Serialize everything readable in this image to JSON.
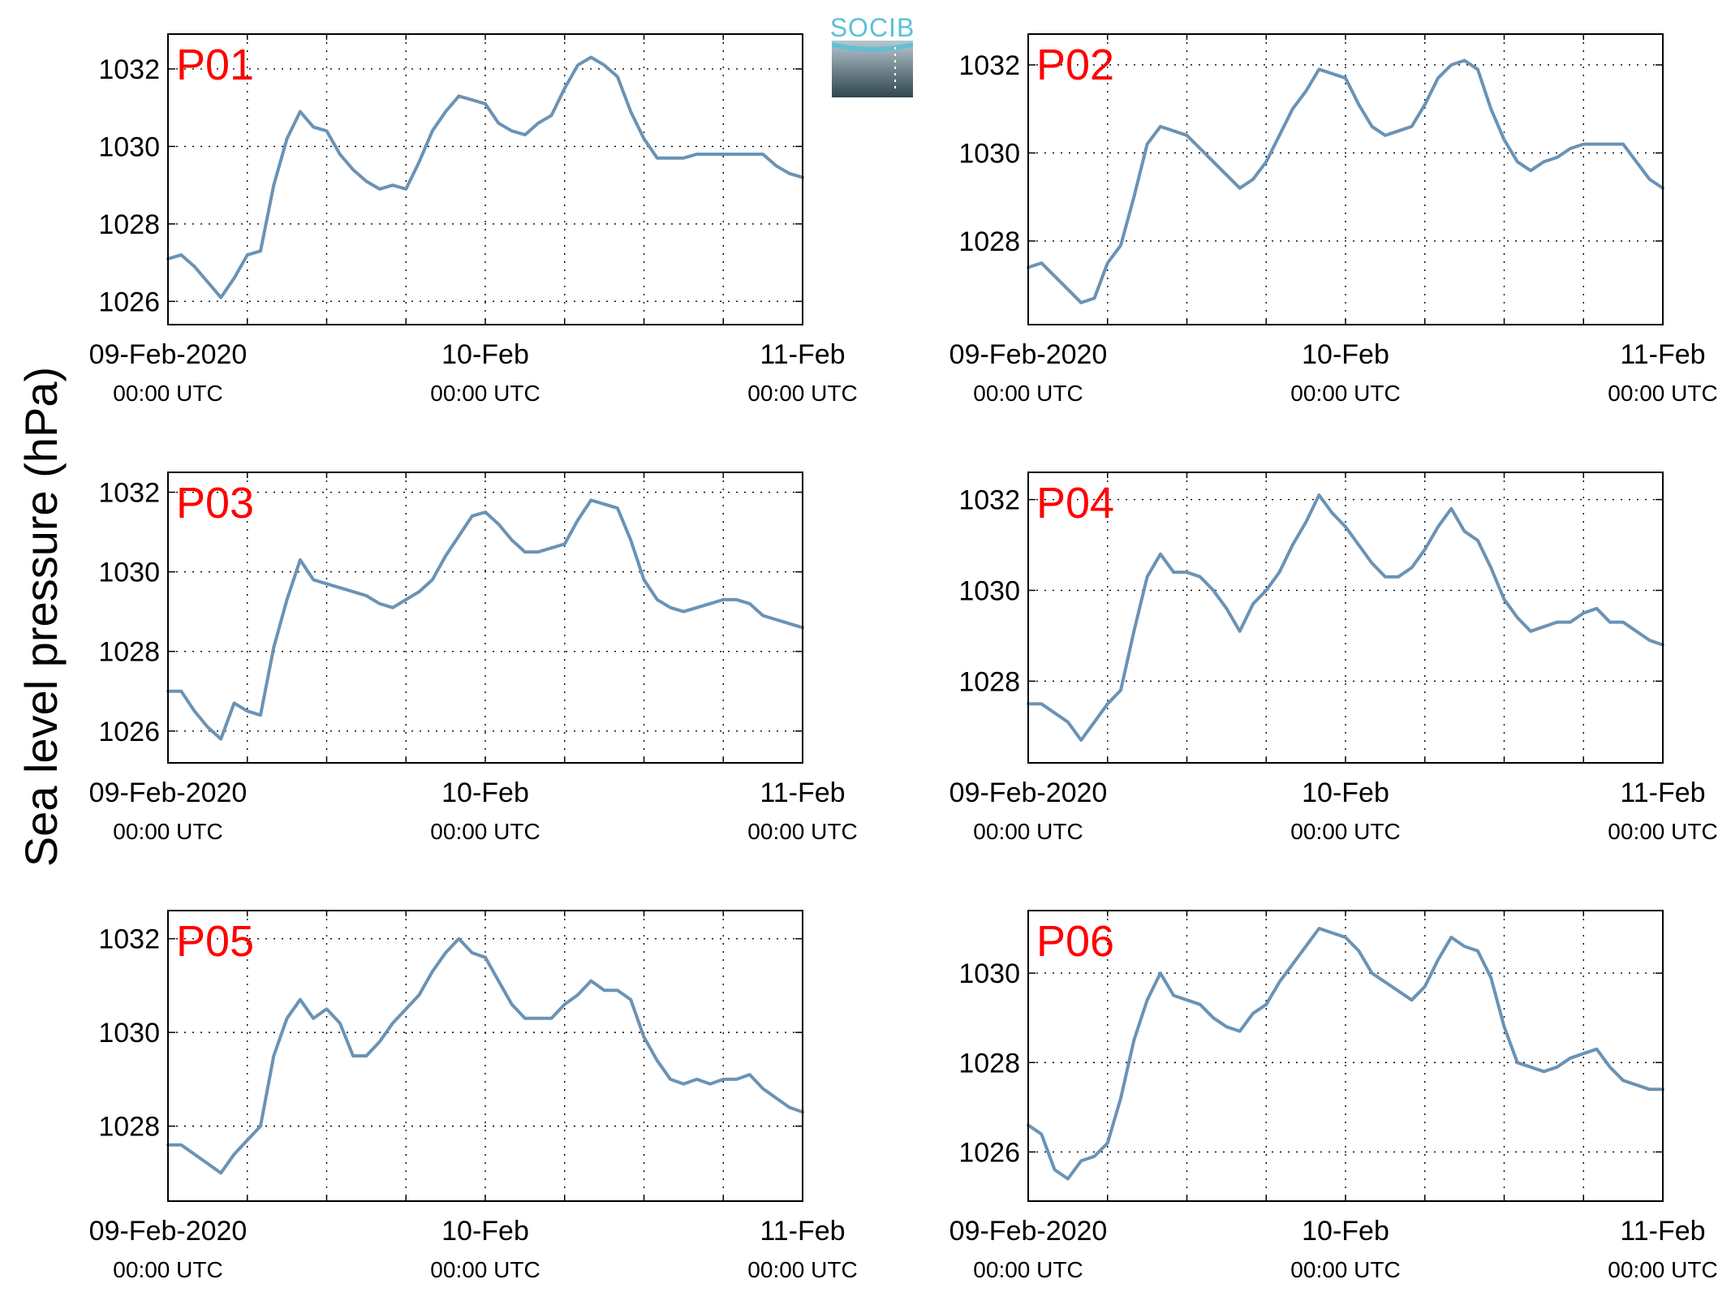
{
  "figure": {
    "ylabel": "Sea level pressure (hPa)",
    "logo_text": "SOCIB"
  },
  "colors": {
    "line": "#6a93b5",
    "panel_label": "#ff0000",
    "axes": "#000000",
    "grid": "#000000",
    "logo_top": "#5bc0d6",
    "logo_bottom": "#2f4550"
  },
  "chart_data": [
    {
      "type": "line",
      "title": "P01",
      "x_tick_labels": [
        {
          "date": "09-Feb-2020",
          "time": "00:00 UTC"
        },
        {
          "date": "10-Feb",
          "time": "00:00 UTC"
        },
        {
          "date": "11-Feb",
          "time": "00:00 UTC"
        }
      ],
      "xlim": [
        0,
        48
      ],
      "ylim": [
        1025.4,
        1032.9
      ],
      "yticks": [
        1026,
        1028,
        1030,
        1032
      ],
      "grid": true,
      "x": [
        0,
        1,
        2,
        3,
        4,
        5,
        6,
        7,
        8,
        9,
        10,
        11,
        12,
        13,
        14,
        15,
        16,
        17,
        18,
        19,
        20,
        21,
        22,
        23,
        24,
        25,
        26,
        27,
        28,
        29,
        30,
        31,
        32,
        33,
        34,
        35,
        36,
        37,
        38,
        39,
        40,
        41,
        42,
        43,
        44,
        45,
        46,
        47,
        48
      ],
      "y": [
        1027.1,
        1027.2,
        1026.9,
        1026.5,
        1026.1,
        1026.6,
        1027.2,
        1027.3,
        1029.0,
        1030.2,
        1030.9,
        1030.5,
        1030.4,
        1029.8,
        1029.4,
        1029.1,
        1028.9,
        1029.0,
        1028.9,
        1029.6,
        1030.4,
        1030.9,
        1031.3,
        1031.2,
        1031.1,
        1030.6,
        1030.4,
        1030.3,
        1030.6,
        1030.8,
        1031.5,
        1032.1,
        1032.3,
        1032.1,
        1031.8,
        1030.9,
        1030.2,
        1029.7,
        1029.7,
        1029.7,
        1029.8,
        1029.8,
        1029.8,
        1029.8,
        1029.8,
        1029.8,
        1029.5,
        1029.3,
        1029.2
      ]
    },
    {
      "type": "line",
      "title": "P02",
      "x_tick_labels": [
        {
          "date": "09-Feb-2020",
          "time": "00:00 UTC"
        },
        {
          "date": "10-Feb",
          "time": "00:00 UTC"
        },
        {
          "date": "11-Feb",
          "time": "00:00 UTC"
        }
      ],
      "xlim": [
        0,
        48
      ],
      "ylim": [
        1026.1,
        1032.7
      ],
      "yticks": [
        1028,
        1030,
        1032
      ],
      "grid": true,
      "x": [
        0,
        1,
        2,
        3,
        4,
        5,
        6,
        7,
        8,
        9,
        10,
        11,
        12,
        13,
        14,
        15,
        16,
        17,
        18,
        19,
        20,
        21,
        22,
        23,
        24,
        25,
        26,
        27,
        28,
        29,
        30,
        31,
        32,
        33,
        34,
        35,
        36,
        37,
        38,
        39,
        40,
        41,
        42,
        43,
        44,
        45,
        46,
        47,
        48
      ],
      "y": [
        1027.4,
        1027.5,
        1027.2,
        1026.9,
        1026.6,
        1026.7,
        1027.5,
        1027.9,
        1029.0,
        1030.2,
        1030.6,
        1030.5,
        1030.4,
        1030.1,
        1029.8,
        1029.5,
        1029.2,
        1029.4,
        1029.8,
        1030.4,
        1031.0,
        1031.4,
        1031.9,
        1031.8,
        1031.7,
        1031.1,
        1030.6,
        1030.4,
        1030.5,
        1030.6,
        1031.1,
        1031.7,
        1032.0,
        1032.1,
        1031.9,
        1031.0,
        1030.3,
        1029.8,
        1029.6,
        1029.8,
        1029.9,
        1030.1,
        1030.2,
        1030.2,
        1030.2,
        1030.2,
        1029.8,
        1029.4,
        1029.2
      ]
    },
    {
      "type": "line",
      "title": "P03",
      "x_tick_labels": [
        {
          "date": "09-Feb-2020",
          "time": "00:00 UTC"
        },
        {
          "date": "10-Feb",
          "time": "00:00 UTC"
        },
        {
          "date": "11-Feb",
          "time": "00:00 UTC"
        }
      ],
      "xlim": [
        0,
        48
      ],
      "ylim": [
        1025.2,
        1032.5
      ],
      "yticks": [
        1026,
        1028,
        1030,
        1032
      ],
      "grid": true,
      "x": [
        0,
        1,
        2,
        3,
        4,
        5,
        6,
        7,
        8,
        9,
        10,
        11,
        12,
        13,
        14,
        15,
        16,
        17,
        18,
        19,
        20,
        21,
        22,
        23,
        24,
        25,
        26,
        27,
        28,
        29,
        30,
        31,
        32,
        33,
        34,
        35,
        36,
        37,
        38,
        39,
        40,
        41,
        42,
        43,
        44,
        45,
        46,
        47,
        48
      ],
      "y": [
        1027.0,
        1027.0,
        1026.5,
        1026.1,
        1025.8,
        1026.7,
        1026.5,
        1026.4,
        1028.1,
        1029.3,
        1030.3,
        1029.8,
        1029.7,
        1029.6,
        1029.5,
        1029.4,
        1029.2,
        1029.1,
        1029.3,
        1029.5,
        1029.8,
        1030.4,
        1030.9,
        1031.4,
        1031.5,
        1031.2,
        1030.8,
        1030.5,
        1030.5,
        1030.6,
        1030.7,
        1031.3,
        1031.8,
        1031.7,
        1031.6,
        1030.8,
        1029.8,
        1029.3,
        1029.1,
        1029.0,
        1029.1,
        1029.2,
        1029.3,
        1029.3,
        1029.2,
        1028.9,
        1028.8,
        1028.7,
        1028.6
      ]
    },
    {
      "type": "line",
      "title": "P04",
      "x_tick_labels": [
        {
          "date": "09-Feb-2020",
          "time": "00:00 UTC"
        },
        {
          "date": "10-Feb",
          "time": "00:00 UTC"
        },
        {
          "date": "11-Feb",
          "time": "00:00 UTC"
        }
      ],
      "xlim": [
        0,
        48
      ],
      "ylim": [
        1026.2,
        1032.6
      ],
      "yticks": [
        1028,
        1030,
        1032
      ],
      "grid": true,
      "x": [
        0,
        1,
        2,
        3,
        4,
        5,
        6,
        7,
        8,
        9,
        10,
        11,
        12,
        13,
        14,
        15,
        16,
        17,
        18,
        19,
        20,
        21,
        22,
        23,
        24,
        25,
        26,
        27,
        28,
        29,
        30,
        31,
        32,
        33,
        34,
        35,
        36,
        37,
        38,
        39,
        40,
        41,
        42,
        43,
        44,
        45,
        46,
        47,
        48
      ],
      "y": [
        1027.5,
        1027.5,
        1027.3,
        1027.1,
        1026.7,
        1027.1,
        1027.5,
        1027.8,
        1029.1,
        1030.3,
        1030.8,
        1030.4,
        1030.4,
        1030.3,
        1030.0,
        1029.6,
        1029.1,
        1029.7,
        1030.0,
        1030.4,
        1031.0,
        1031.5,
        1032.1,
        1031.7,
        1031.4,
        1031.0,
        1030.6,
        1030.3,
        1030.3,
        1030.5,
        1030.9,
        1031.4,
        1031.8,
        1031.3,
        1031.1,
        1030.5,
        1029.8,
        1029.4,
        1029.1,
        1029.2,
        1029.3,
        1029.3,
        1029.5,
        1029.6,
        1029.3,
        1029.3,
        1029.1,
        1028.9,
        1028.8
      ]
    },
    {
      "type": "line",
      "title": "P05",
      "x_tick_labels": [
        {
          "date": "09-Feb-2020",
          "time": "00:00 UTC"
        },
        {
          "date": "10-Feb",
          "time": "00:00 UTC"
        },
        {
          "date": "11-Feb",
          "time": "00:00 UTC"
        }
      ],
      "xlim": [
        0,
        48
      ],
      "ylim": [
        1026.4,
        1032.6
      ],
      "yticks": [
        1028,
        1030,
        1032
      ],
      "grid": true,
      "x": [
        0,
        1,
        2,
        3,
        4,
        5,
        6,
        7,
        8,
        9,
        10,
        11,
        12,
        13,
        14,
        15,
        16,
        17,
        18,
        19,
        20,
        21,
        22,
        23,
        24,
        25,
        26,
        27,
        28,
        29,
        30,
        31,
        32,
        33,
        34,
        35,
        36,
        37,
        38,
        39,
        40,
        41,
        42,
        43,
        44,
        45,
        46,
        47,
        48
      ],
      "y": [
        1027.6,
        1027.6,
        1027.4,
        1027.2,
        1027.0,
        1027.4,
        1027.7,
        1028.0,
        1029.5,
        1030.3,
        1030.7,
        1030.3,
        1030.5,
        1030.2,
        1029.5,
        1029.5,
        1029.8,
        1030.2,
        1030.5,
        1030.8,
        1031.3,
        1031.7,
        1032.0,
        1031.7,
        1031.6,
        1031.1,
        1030.6,
        1030.3,
        1030.3,
        1030.3,
        1030.6,
        1030.8,
        1031.1,
        1030.9,
        1030.9,
        1030.7,
        1029.9,
        1029.4,
        1029.0,
        1028.9,
        1029.0,
        1028.9,
        1029.0,
        1029.0,
        1029.1,
        1028.8,
        1028.6,
        1028.4,
        1028.3
      ]
    },
    {
      "type": "line",
      "title": "P06",
      "x_tick_labels": [
        {
          "date": "09-Feb-2020",
          "time": "00:00 UTC"
        },
        {
          "date": "10-Feb",
          "time": "00:00 UTC"
        },
        {
          "date": "11-Feb",
          "time": "00:00 UTC"
        }
      ],
      "xlim": [
        0,
        48
      ],
      "ylim": [
        1024.9,
        1031.4
      ],
      "yticks": [
        1026,
        1028,
        1030
      ],
      "grid": true,
      "x": [
        0,
        1,
        2,
        3,
        4,
        5,
        6,
        7,
        8,
        9,
        10,
        11,
        12,
        13,
        14,
        15,
        16,
        17,
        18,
        19,
        20,
        21,
        22,
        23,
        24,
        25,
        26,
        27,
        28,
        29,
        30,
        31,
        32,
        33,
        34,
        35,
        36,
        37,
        38,
        39,
        40,
        41,
        42,
        43,
        44,
        45,
        46,
        47,
        48
      ],
      "y": [
        1026.6,
        1026.4,
        1025.6,
        1025.4,
        1025.8,
        1025.9,
        1026.2,
        1027.2,
        1028.5,
        1029.4,
        1030.0,
        1029.5,
        1029.4,
        1029.3,
        1029.0,
        1028.8,
        1028.7,
        1029.1,
        1029.3,
        1029.8,
        1030.2,
        1030.6,
        1031.0,
        1030.9,
        1030.8,
        1030.5,
        1030.0,
        1029.8,
        1029.6,
        1029.4,
        1029.7,
        1030.3,
        1030.8,
        1030.6,
        1030.5,
        1029.9,
        1028.8,
        1028.0,
        1027.9,
        1027.8,
        1027.9,
        1028.1,
        1028.2,
        1028.3,
        1027.9,
        1027.6,
        1027.5,
        1027.4,
        1027.4
      ]
    }
  ]
}
